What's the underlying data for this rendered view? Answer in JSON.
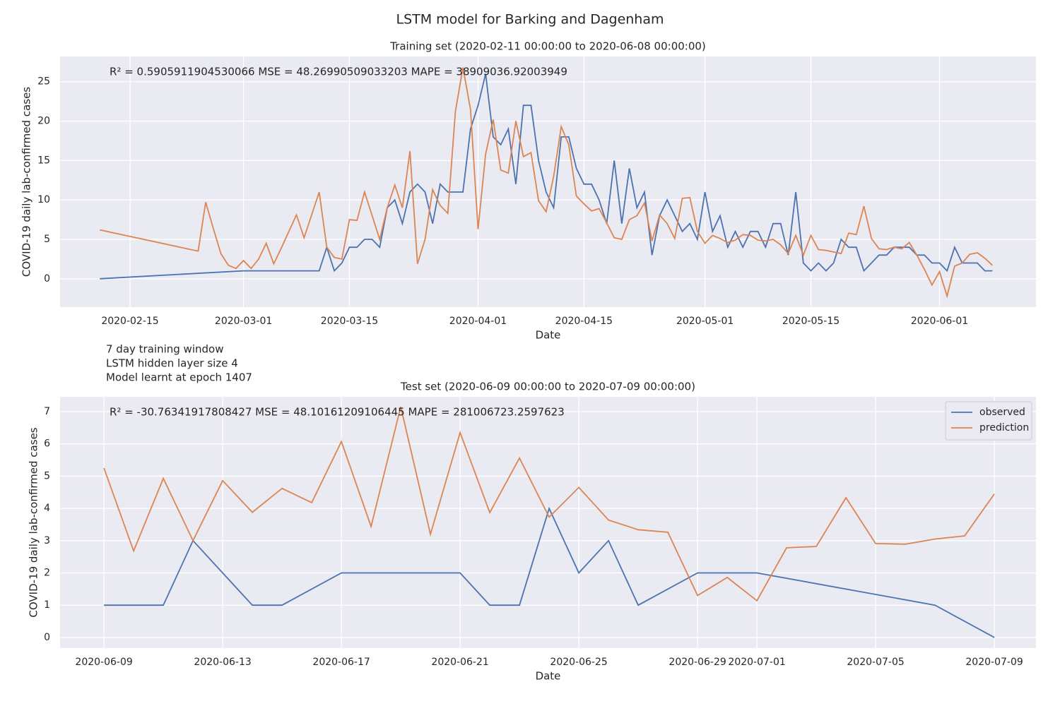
{
  "title": "LSTM model for Barking and Dagenham",
  "notes": [
    "7 day training window",
    "LSTM hidden layer size 4",
    "Model learnt at epoch 1407"
  ],
  "chart_data": [
    {
      "type": "line",
      "title": "Training set (2020-02-11 00:00:00 to 2020-06-08 00:00:00)",
      "annotation": "R² = 0.5905911904530066  MSE = 48.26990509033203  MAPE = 38909036.92003949",
      "x_label": "Date",
      "y_label": "COVID-19 daily lab-confirmed cases",
      "xlim": [
        "2020-02-05T18:00",
        "2020-06-13T18:00"
      ],
      "xticks": [
        "2020-02-15",
        "2020-03-01",
        "2020-03-15",
        "2020-04-01",
        "2020-04-15",
        "2020-05-01",
        "2020-05-15",
        "2020-06-01"
      ],
      "ylim": [
        -3.6,
        28.2
      ],
      "yticks": [
        0,
        5,
        10,
        15,
        20,
        25
      ],
      "grid": true,
      "series": [
        {
          "color": "#4c72b0",
          "x": [
            "2020-02-11",
            "2020-03-01",
            "2020-03-02",
            "2020-03-03",
            "2020-03-04",
            "2020-03-05",
            "2020-03-06",
            "2020-03-07",
            "2020-03-08",
            "2020-03-09",
            "2020-03-10",
            "2020-03-11",
            "2020-03-12",
            "2020-03-13",
            "2020-03-14",
            "2020-03-15",
            "2020-03-16",
            "2020-03-17",
            "2020-03-18",
            "2020-03-19",
            "2020-03-20",
            "2020-03-21",
            "2020-03-22",
            "2020-03-23",
            "2020-03-24",
            "2020-03-25",
            "2020-03-26",
            "2020-03-27",
            "2020-03-28",
            "2020-03-29",
            "2020-03-30",
            "2020-03-31",
            "2020-04-01",
            "2020-04-02",
            "2020-04-03",
            "2020-04-04",
            "2020-04-05",
            "2020-04-06",
            "2020-04-07",
            "2020-04-08",
            "2020-04-09",
            "2020-04-10",
            "2020-04-11",
            "2020-04-12",
            "2020-04-13",
            "2020-04-14",
            "2020-04-15",
            "2020-04-16",
            "2020-04-17",
            "2020-04-18",
            "2020-04-19",
            "2020-04-20",
            "2020-04-21",
            "2020-04-22",
            "2020-04-23",
            "2020-04-24",
            "2020-04-25",
            "2020-04-26",
            "2020-04-27",
            "2020-04-28",
            "2020-04-29",
            "2020-04-30",
            "2020-05-01",
            "2020-05-02",
            "2020-05-03",
            "2020-05-04",
            "2020-05-05",
            "2020-05-06",
            "2020-05-07",
            "2020-05-08",
            "2020-05-09",
            "2020-05-10",
            "2020-05-11",
            "2020-05-12",
            "2020-05-13",
            "2020-05-14",
            "2020-05-15",
            "2020-05-16",
            "2020-05-17",
            "2020-05-18",
            "2020-05-19",
            "2020-05-20",
            "2020-05-21",
            "2020-05-22",
            "2020-05-23",
            "2020-05-24",
            "2020-05-25",
            "2020-05-26",
            "2020-05-27",
            "2020-05-28",
            "2020-05-29",
            "2020-05-30",
            "2020-05-31",
            "2020-06-01",
            "2020-06-02",
            "2020-06-03",
            "2020-06-04",
            "2020-06-05",
            "2020-06-06",
            "2020-06-07",
            "2020-06-08"
          ],
          "values": [
            0,
            1,
            1,
            1,
            1,
            1,
            1,
            1,
            1,
            1,
            1,
            1,
            4,
            1,
            2,
            4,
            4,
            5,
            5,
            4,
            9,
            10,
            7,
            11,
            12,
            11,
            7,
            12,
            11,
            11,
            11,
            19,
            22,
            26,
            18,
            17,
            19,
            12,
            22,
            22,
            15,
            11,
            9,
            18,
            18,
            14,
            12,
            12,
            10,
            7,
            15,
            7,
            14,
            9,
            11,
            3,
            8,
            10,
            8,
            6,
            7,
            5,
            11,
            6,
            8,
            4,
            6,
            4,
            6,
            6,
            4,
            7,
            7,
            3,
            11,
            2,
            1,
            2,
            1,
            2,
            5,
            4,
            4,
            1,
            2,
            3,
            3,
            4,
            4,
            4,
            3,
            3,
            2,
            2,
            1,
            4,
            2,
            2,
            2,
            1,
            1
          ]
        },
        {
          "color": "#dd8452",
          "x": [
            "2020-02-11",
            "2020-02-24",
            "2020-02-25",
            "2020-02-26",
            "2020-02-27",
            "2020-02-28",
            "2020-02-29",
            "2020-03-01",
            "2020-03-02",
            "2020-03-03",
            "2020-03-04",
            "2020-03-05",
            "2020-03-06",
            "2020-03-07",
            "2020-03-08",
            "2020-03-09",
            "2020-03-10",
            "2020-03-11",
            "2020-03-12",
            "2020-03-13",
            "2020-03-14",
            "2020-03-15",
            "2020-03-16",
            "2020-03-17",
            "2020-03-18",
            "2020-03-19",
            "2020-03-20",
            "2020-03-21",
            "2020-03-22",
            "2020-03-23",
            "2020-03-24",
            "2020-03-25",
            "2020-03-26",
            "2020-03-27",
            "2020-03-28",
            "2020-03-29",
            "2020-03-30",
            "2020-03-31",
            "2020-04-01",
            "2020-04-02",
            "2020-04-03",
            "2020-04-04",
            "2020-04-05",
            "2020-04-06",
            "2020-04-07",
            "2020-04-08",
            "2020-04-09",
            "2020-04-10",
            "2020-04-11",
            "2020-04-12",
            "2020-04-13",
            "2020-04-14",
            "2020-04-15",
            "2020-04-16",
            "2020-04-17",
            "2020-04-18",
            "2020-04-19",
            "2020-04-20",
            "2020-04-21",
            "2020-04-22",
            "2020-04-23",
            "2020-04-24",
            "2020-04-25",
            "2020-04-26",
            "2020-04-27",
            "2020-04-28",
            "2020-04-29",
            "2020-04-30",
            "2020-05-01",
            "2020-05-02",
            "2020-05-03",
            "2020-05-04",
            "2020-05-05",
            "2020-05-06",
            "2020-05-07",
            "2020-05-08",
            "2020-05-09",
            "2020-05-10",
            "2020-05-11",
            "2020-05-12",
            "2020-05-13",
            "2020-05-14",
            "2020-05-15",
            "2020-05-16",
            "2020-05-17",
            "2020-05-18",
            "2020-05-19",
            "2020-05-20",
            "2020-05-21",
            "2020-05-22",
            "2020-05-23",
            "2020-05-24",
            "2020-05-25",
            "2020-05-26",
            "2020-05-27",
            "2020-05-28",
            "2020-05-29",
            "2020-05-30",
            "2020-05-31",
            "2020-06-01",
            "2020-06-02",
            "2020-06-03",
            "2020-06-04",
            "2020-06-05",
            "2020-06-06",
            "2020-06-07",
            "2020-06-08"
          ],
          "values": [
            6.2,
            3.5,
            9.7,
            6.4,
            3.2,
            1.7,
            1.3,
            2.3,
            1.3,
            2.5,
            4.5,
            1.9,
            3.9,
            6.0,
            8.1,
            5.2,
            8.1,
            11.0,
            4.0,
            2.7,
            2.5,
            7.5,
            7.4,
            11.0,
            8.0,
            5.0,
            9.0,
            11.9,
            9.0,
            16.2,
            1.9,
            5.0,
            11.3,
            9.3,
            8.3,
            21.2,
            26.8,
            21.5,
            6.3,
            15.8,
            20.2,
            13.8,
            13.4,
            20.0,
            15.5,
            16.0,
            9.9,
            8.5,
            13.0,
            19.3,
            17.0,
            10.5,
            9.5,
            8.6,
            8.9,
            7.1,
            5.2,
            5.0,
            7.5,
            8.0,
            9.6,
            4.8,
            8.1,
            7.0,
            5.1,
            10.2,
            10.3,
            6.0,
            4.5,
            5.5,
            5.1,
            4.6,
            4.9,
            5.6,
            5.5,
            4.9,
            4.8,
            5.0,
            4.3,
            3.2,
            5.5,
            3.0,
            5.5,
            3.7,
            3.6,
            3.4,
            3.2,
            5.8,
            5.6,
            9.2,
            5.1,
            3.8,
            3.7,
            4.0,
            3.8,
            4.6,
            3.0,
            1.2,
            -0.8,
            0.9,
            -2.2,
            1.6,
            2.0,
            3.1,
            3.3,
            2.6,
            1.7
          ]
        }
      ]
    },
    {
      "type": "line",
      "title": "Test set (2020-06-09 00:00:00 to 2020-07-09 00:00:00)",
      "annotation": "R² = -30.76341917808427  MSE = 48.10161209106445  MAPE = 281006723.2597623",
      "x_label": "Date",
      "y_label": "COVID-19 daily lab-confirmed cases",
      "xlim": [
        "2020-06-07T12:30",
        "2020-07-10T09:40"
      ],
      "xticks": [
        "2020-06-09",
        "2020-06-13",
        "2020-06-17",
        "2020-06-21",
        "2020-06-25",
        "2020-06-29",
        "2020-07-01",
        "2020-07-05",
        "2020-07-09"
      ],
      "ylim": [
        -0.33,
        7.46
      ],
      "yticks": [
        0,
        1,
        2,
        3,
        4,
        5,
        6,
        7
      ],
      "grid": true,
      "legend": "upper right",
      "series": [
        {
          "name": "observed",
          "color": "#4c72b0",
          "x": [
            "2020-06-09",
            "2020-06-10",
            "2020-06-11",
            "2020-06-12",
            "2020-06-13",
            "2020-06-14",
            "2020-06-15",
            "2020-06-17",
            "2020-06-18",
            "2020-06-19",
            "2020-06-20",
            "2020-06-21",
            "2020-06-22",
            "2020-06-23",
            "2020-06-24",
            "2020-06-25",
            "2020-06-26",
            "2020-06-27",
            "2020-06-29",
            "2020-06-30",
            "2020-07-01",
            "2020-07-07",
            "2020-07-09"
          ],
          "values": [
            1,
            1,
            1,
            3,
            2,
            1,
            1,
            2,
            2,
            2,
            2,
            2,
            1,
            1,
            4,
            2,
            3,
            1,
            2,
            2,
            2,
            1,
            0
          ]
        },
        {
          "name": "prediction",
          "color": "#dd8452",
          "x": [
            "2020-06-09",
            "2020-06-10",
            "2020-06-11",
            "2020-06-12",
            "2020-06-13",
            "2020-06-14",
            "2020-06-15",
            "2020-06-16",
            "2020-06-17",
            "2020-06-18",
            "2020-06-19",
            "2020-06-20",
            "2020-06-21",
            "2020-06-22",
            "2020-06-23",
            "2020-06-24",
            "2020-06-25",
            "2020-06-26",
            "2020-06-27",
            "2020-06-28",
            "2020-06-29",
            "2020-06-30",
            "2020-07-01",
            "2020-07-02",
            "2020-07-03",
            "2020-07-04",
            "2020-07-05",
            "2020-07-06",
            "2020-07-07",
            "2020-07-08",
            "2020-07-09"
          ],
          "values": [
            5.25,
            2.68,
            4.93,
            3.0,
            4.86,
            3.88,
            4.62,
            4.18,
            6.07,
            3.44,
            7.15,
            3.2,
            6.35,
            3.87,
            5.56,
            3.73,
            4.65,
            3.64,
            3.34,
            3.26,
            1.3,
            1.86,
            1.14,
            2.78,
            2.82,
            4.33,
            2.91,
            2.89,
            3.05,
            3.15,
            4.45
          ]
        }
      ]
    }
  ]
}
